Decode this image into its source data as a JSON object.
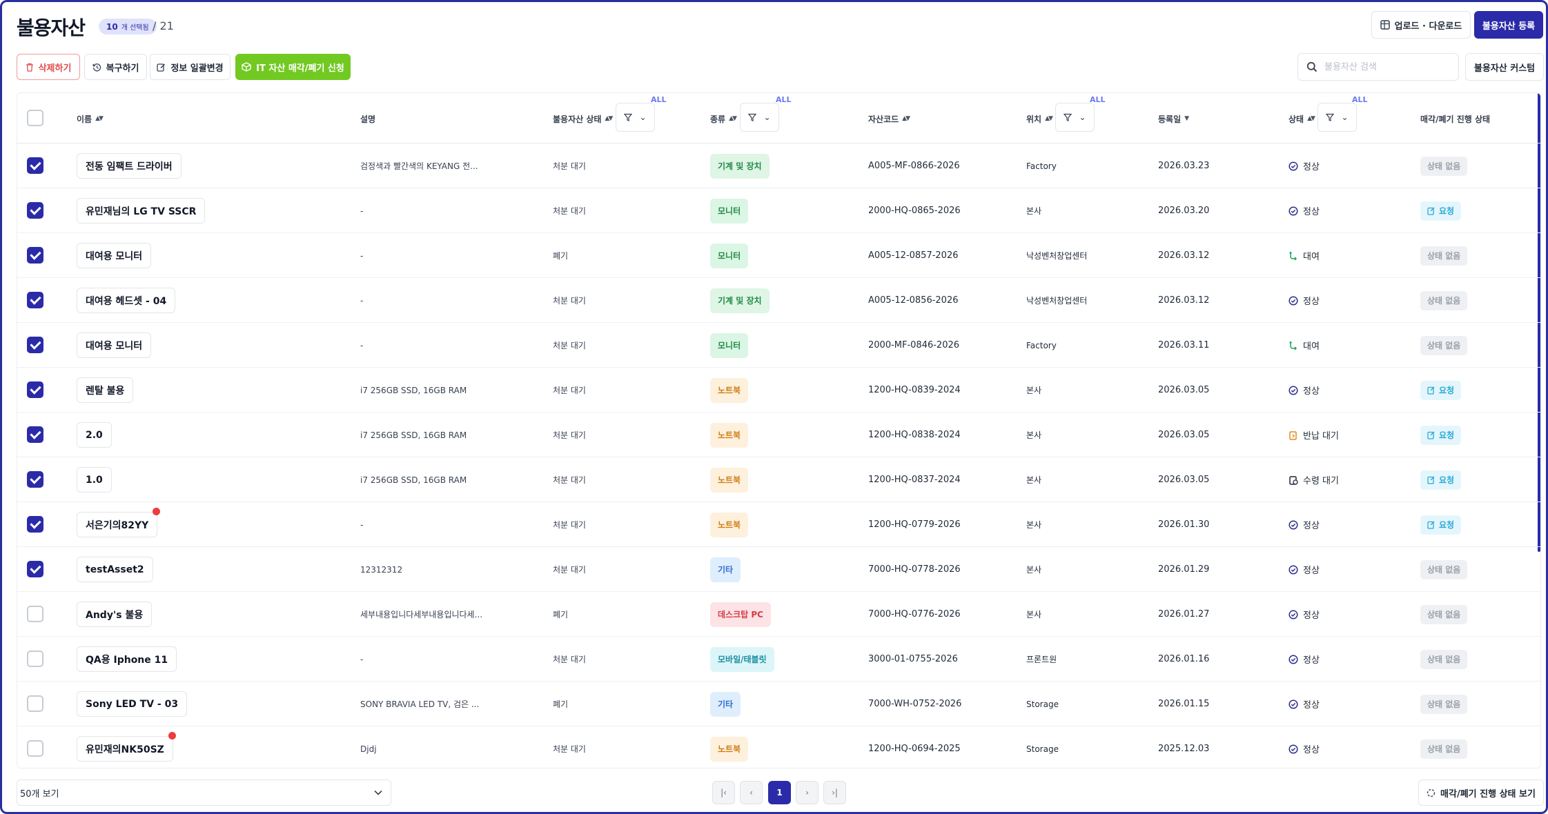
{
  "header": {
    "title": "불용자산",
    "selected_count": "10",
    "selected_label": "개 선택됨",
    "total": "/ 21"
  },
  "toolbar": {
    "delete_label": "삭제하기",
    "restore_label": "복구하기",
    "bulk_edit_label": "정보 일괄변경",
    "it_request_label": "IT 자산 매각/폐기 신청",
    "upload_download_label": "업로드 · 다운로드",
    "register_label": "불용자산 등록",
    "customize_label": "불용자산 커스텀",
    "search_placeholder": "불용자산 검색"
  },
  "table": {
    "columns": {
      "name": "이름",
      "description": "설명",
      "disposal_status": "불용자산 상태",
      "kind": "종류",
      "asset_code": "자산코드",
      "location": "위치",
      "registered": "등록일",
      "status": "상태",
      "progress": "매각/폐기 진행 상태"
    },
    "filter_all": "ALL",
    "rows": [
      {
        "checked": true,
        "name": "전동 임팩트 드라이버",
        "dot": false,
        "desc": "검정색과 빨간색의 KEYANG 전...",
        "disposal": "처분 대기",
        "kind": "기계 및 장치",
        "kind_class": "k-machine",
        "code": "A005-MF-0866-2026",
        "location": "Factory",
        "date": "2026.03.23",
        "status": "정상",
        "status_icon": "normal",
        "progress": "상태 없음",
        "progress_type": "none"
      },
      {
        "checked": true,
        "name": "유민재님의 LG TV SSCR",
        "dot": false,
        "desc": "-",
        "disposal": "처분 대기",
        "kind": "모니터",
        "kind_class": "k-monitor",
        "code": "2000-HQ-0865-2026",
        "location": "본사",
        "date": "2026.03.20",
        "status": "정상",
        "status_icon": "normal",
        "progress": "요청",
        "progress_type": "req"
      },
      {
        "checked": true,
        "name": "대여용 모니터",
        "dot": false,
        "desc": "-",
        "disposal": "폐기",
        "kind": "모니터",
        "kind_class": "k-monitor",
        "code": "A005-12-0857-2026",
        "location": "낙성벤처창업센터",
        "date": "2026.03.12",
        "status": "대여",
        "status_icon": "rent",
        "progress": "상태 없음",
        "progress_type": "none"
      },
      {
        "checked": true,
        "name": "대여용 헤드셋 - 04",
        "dot": false,
        "desc": "-",
        "disposal": "처분 대기",
        "kind": "기계 및 장치",
        "kind_class": "k-machine",
        "code": "A005-12-0856-2026",
        "location": "낙성벤처창업센터",
        "date": "2026.03.12",
        "status": "정상",
        "status_icon": "normal",
        "progress": "상태 없음",
        "progress_type": "none"
      },
      {
        "checked": true,
        "name": "대여용 모니터",
        "dot": false,
        "desc": "-",
        "disposal": "처분 대기",
        "kind": "모니터",
        "kind_class": "k-monitor",
        "code": "2000-MF-0846-2026",
        "location": "Factory",
        "date": "2026.03.11",
        "status": "대여",
        "status_icon": "rent",
        "progress": "상태 없음",
        "progress_type": "none"
      },
      {
        "checked": true,
        "name": "렌탈 불용",
        "dot": false,
        "desc": "i7 256GB SSD, 16GB RAM",
        "disposal": "처분 대기",
        "kind": "노트북",
        "kind_class": "k-laptop",
        "code": "1200-HQ-0839-2024",
        "location": "본사",
        "date": "2026.03.05",
        "status": "정상",
        "status_icon": "normal",
        "progress": "요청",
        "progress_type": "req"
      },
      {
        "checked": true,
        "name": "2.0",
        "dot": false,
        "desc": "i7 256GB SSD, 16GB RAM",
        "disposal": "처분 대기",
        "kind": "노트북",
        "kind_class": "k-laptop",
        "code": "1200-HQ-0838-2024",
        "location": "본사",
        "date": "2026.03.05",
        "status": "반납 대기",
        "status_icon": "return",
        "progress": "요청",
        "progress_type": "req"
      },
      {
        "checked": true,
        "name": "1.0",
        "dot": false,
        "desc": "i7 256GB SSD, 16GB RAM",
        "disposal": "처분 대기",
        "kind": "노트북",
        "kind_class": "k-laptop",
        "code": "1200-HQ-0837-2024",
        "location": "본사",
        "date": "2026.03.05",
        "status": "수령 대기",
        "status_icon": "receive",
        "progress": "요청",
        "progress_type": "req"
      },
      {
        "checked": true,
        "name": "서은기의82YY",
        "dot": true,
        "desc": "-",
        "disposal": "처분 대기",
        "kind": "노트북",
        "kind_class": "k-laptop",
        "code": "1200-HQ-0779-2026",
        "location": "본사",
        "date": "2026.01.30",
        "status": "정상",
        "status_icon": "normal",
        "progress": "요청",
        "progress_type": "req"
      },
      {
        "checked": true,
        "name": "testAsset2",
        "dot": false,
        "desc": "12312312",
        "disposal": "처분 대기",
        "kind": "기타",
        "kind_class": "k-etc",
        "code": "7000-HQ-0778-2026",
        "location": "본사",
        "date": "2026.01.29",
        "status": "정상",
        "status_icon": "normal",
        "progress": "상태 없음",
        "progress_type": "none"
      },
      {
        "checked": false,
        "name": "Andy's 불용",
        "dot": false,
        "desc": "세부내용입니다세부내용입니다세...",
        "disposal": "폐기",
        "kind": "데스크탑 PC",
        "kind_class": "k-desktop",
        "code": "7000-HQ-0776-2026",
        "location": "본사",
        "date": "2026.01.27",
        "status": "정상",
        "status_icon": "normal",
        "progress": "상태 없음",
        "progress_type": "none"
      },
      {
        "checked": false,
        "name": "QA용 Iphone 11",
        "dot": false,
        "desc": "-",
        "disposal": "처분 대기",
        "kind": "모바일/태블릿",
        "kind_class": "k-mobile",
        "code": "3000-01-0755-2026",
        "location": "프론트원",
        "date": "2026.01.16",
        "status": "정상",
        "status_icon": "normal",
        "progress": "상태 없음",
        "progress_type": "none"
      },
      {
        "checked": false,
        "name": "Sony LED TV - 03",
        "dot": false,
        "desc": "SONY BRAVIA LED TV, 검은 ...",
        "disposal": "폐기",
        "kind": "기타",
        "kind_class": "k-etc",
        "code": "7000-WH-0752-2026",
        "location": "Storage",
        "date": "2026.01.15",
        "status": "정상",
        "status_icon": "normal",
        "progress": "상태 없음",
        "progress_type": "none"
      },
      {
        "checked": false,
        "name": "유민재의NK50SZ",
        "dot": true,
        "desc": "Djdj",
        "disposal": "처분 대기",
        "kind": "노트북",
        "kind_class": "k-laptop",
        "code": "1200-HQ-0694-2025",
        "location": "Storage",
        "date": "2025.12.03",
        "status": "정상",
        "status_icon": "normal",
        "progress": "상태 없음",
        "progress_type": "none"
      }
    ]
  },
  "footer": {
    "per_page": "50개 보기",
    "current_page": "1",
    "progress_view_label": "매각/폐기 진행 상태 보기"
  },
  "colors": {
    "primary": "#2b2ba9",
    "it_green": "#72c922",
    "danger": "#e14b4b"
  }
}
